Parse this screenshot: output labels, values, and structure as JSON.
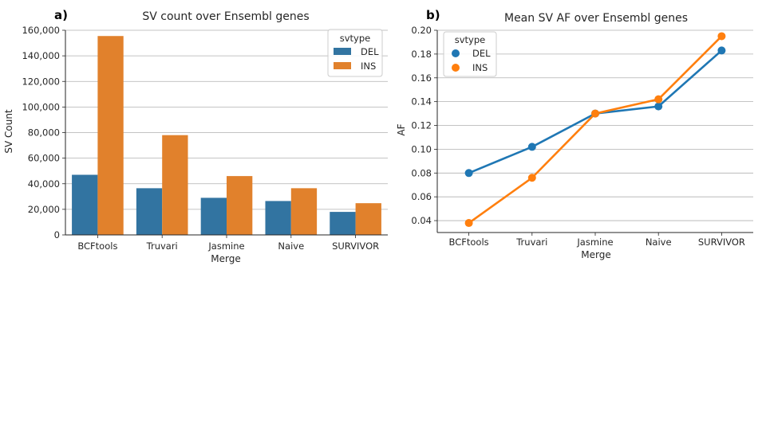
{
  "chart_data": [
    {
      "type": "bar",
      "panel_label": "a)",
      "title": "SV count over Ensembl genes",
      "xlabel": "Merge",
      "ylabel": "SV Count",
      "categories": [
        "BCFtools",
        "Truvari",
        "Jasmine",
        "Naive",
        "SURVIVOR"
      ],
      "ylim": [
        0,
        160000
      ],
      "yticks": [
        "0",
        "20,000",
        "40,000",
        "60,000",
        "80,000",
        "100,000",
        "120,000",
        "140,000",
        "160,000"
      ],
      "legend_title": "svtype",
      "legend_position": "top-right",
      "grid": "horizontal",
      "series": [
        {
          "name": "DEL",
          "values": [
            47000,
            36500,
            29000,
            26500,
            18000
          ],
          "color": "#3274a1"
        },
        {
          "name": "INS",
          "values": [
            155500,
            78000,
            46000,
            36500,
            24800
          ],
          "color": "#e1812c"
        }
      ]
    },
    {
      "type": "line",
      "panel_label": "b)",
      "title": "Mean SV AF over Ensembl genes",
      "xlabel": "Merge",
      "ylabel": "AF",
      "categories": [
        "BCFtools",
        "Truvari",
        "Jasmine",
        "Naive",
        "SURVIVOR"
      ],
      "ylim": [
        0.03,
        0.2
      ],
      "yticks": [
        "0.04",
        "0.06",
        "0.08",
        "0.10",
        "0.12",
        "0.14",
        "0.16",
        "0.18",
        "0.20"
      ],
      "legend_title": "svtype",
      "legend_position": "top-left",
      "grid": "horizontal",
      "series": [
        {
          "name": "DEL",
          "values": [
            0.08,
            0.102,
            0.13,
            0.136,
            0.183
          ],
          "color": "#1f77b4"
        },
        {
          "name": "INS",
          "values": [
            0.038,
            0.076,
            0.13,
            0.142,
            0.195
          ],
          "color": "#ff7f0e"
        }
      ]
    }
  ]
}
